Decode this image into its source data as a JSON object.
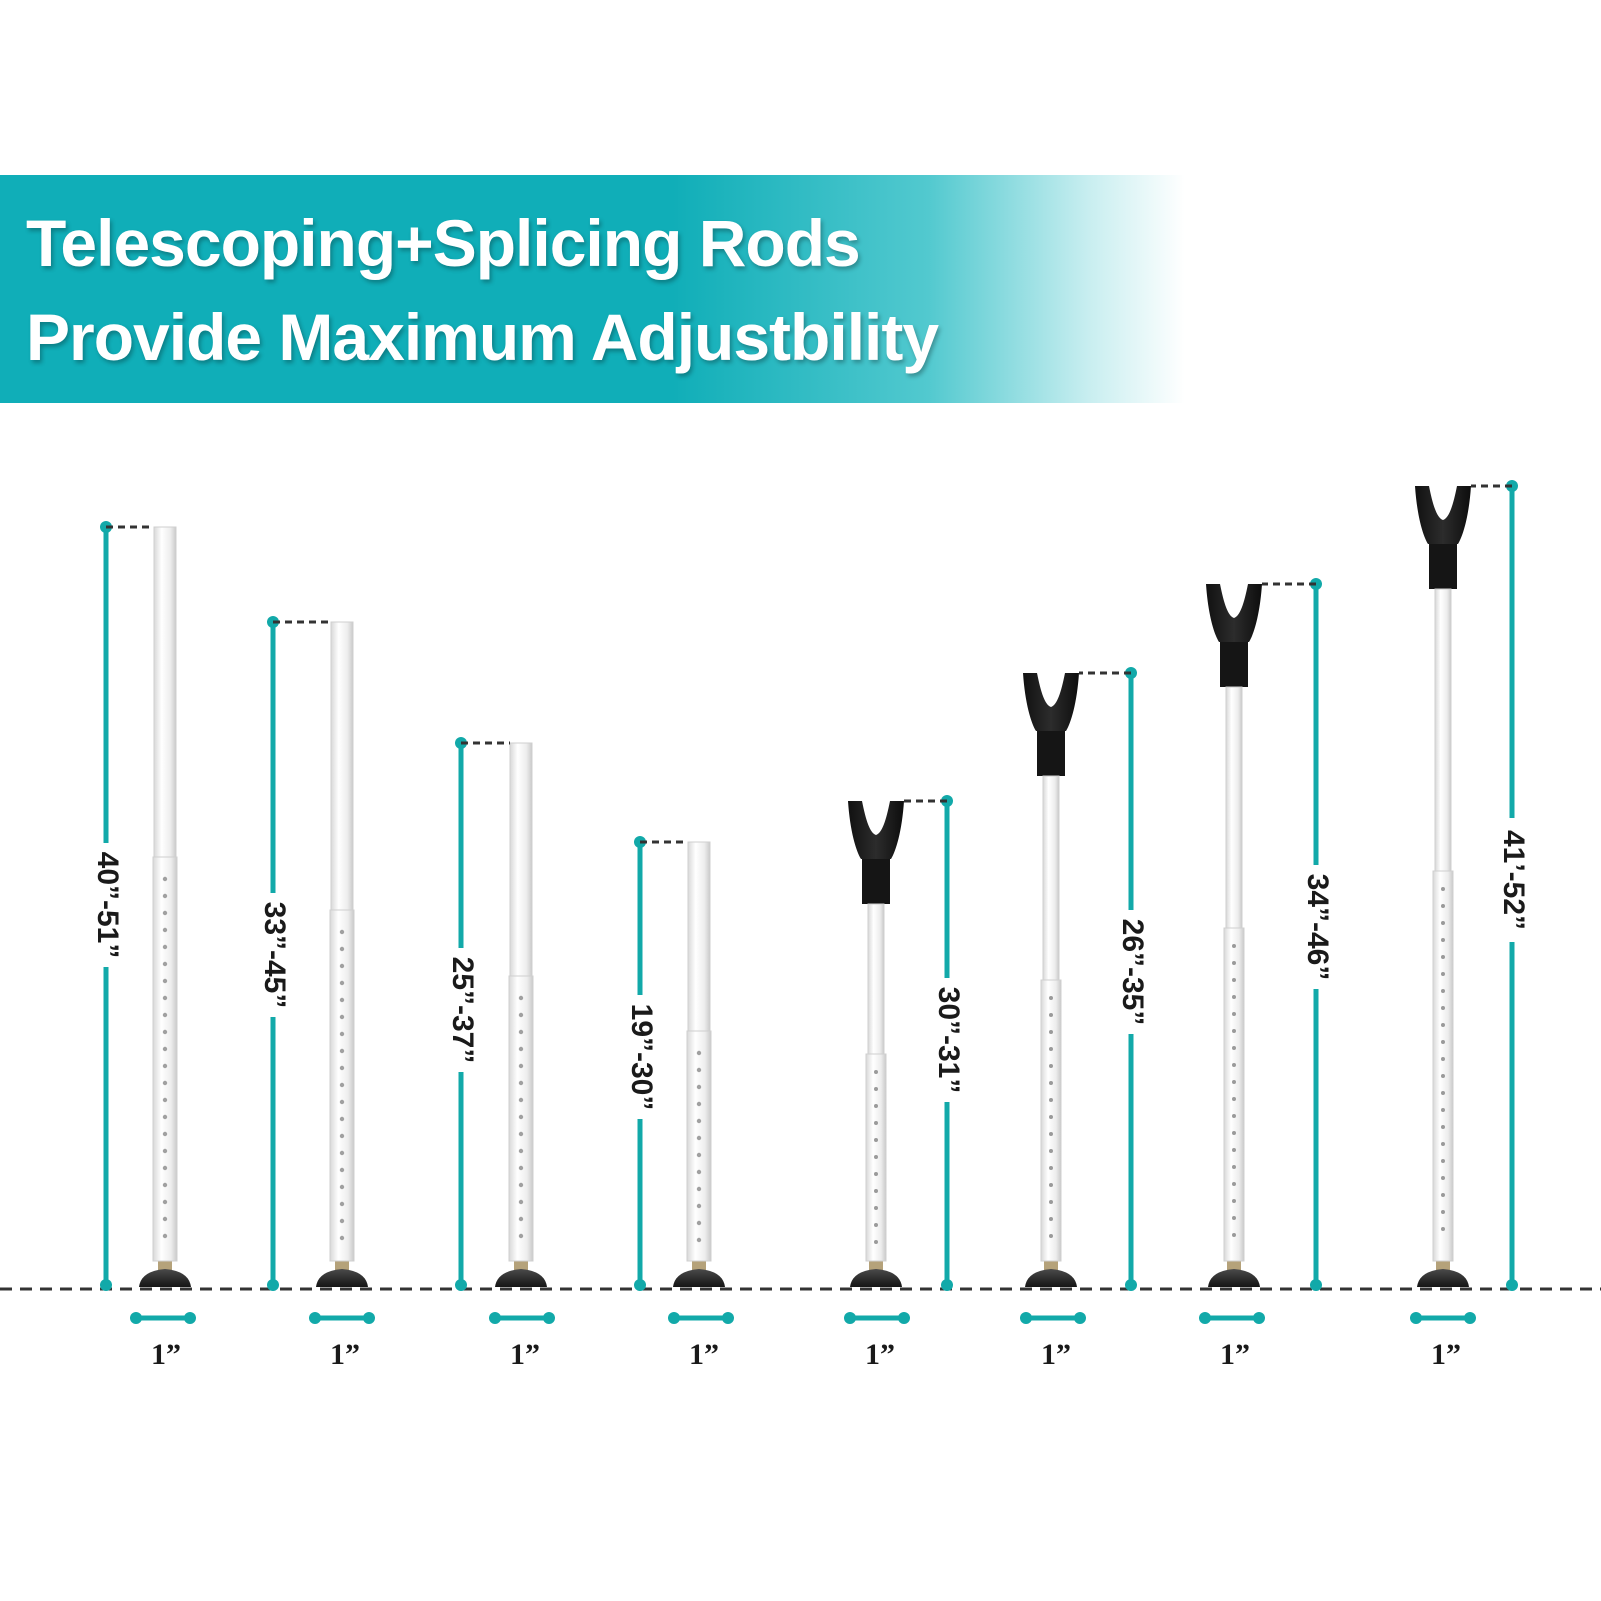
{
  "banner": {
    "line1": "Telescoping+Splicing Rods",
    "line2": "Provide Maximum Adjustbility",
    "color": "#10aeb8"
  },
  "accent_color": "#12a9a9",
  "rods": [
    {
      "range": "40”-51”",
      "width": "1”",
      "top": "flat"
    },
    {
      "range": "33”-45”",
      "width": "1”",
      "top": "flat"
    },
    {
      "range": "25”-37”",
      "width": "1”",
      "top": "flat"
    },
    {
      "range": "19”-30”",
      "width": "1”",
      "top": "flat"
    },
    {
      "range": "30”-31”",
      "width": "1”",
      "top": "v-fork"
    },
    {
      "range": "26”-35”",
      "width": "1”",
      "top": "v-fork"
    },
    {
      "range": "34”-46”",
      "width": "1”",
      "top": "v-fork"
    },
    {
      "range": "41’-52”",
      "width": "1”",
      "top": "v-fork"
    }
  ]
}
